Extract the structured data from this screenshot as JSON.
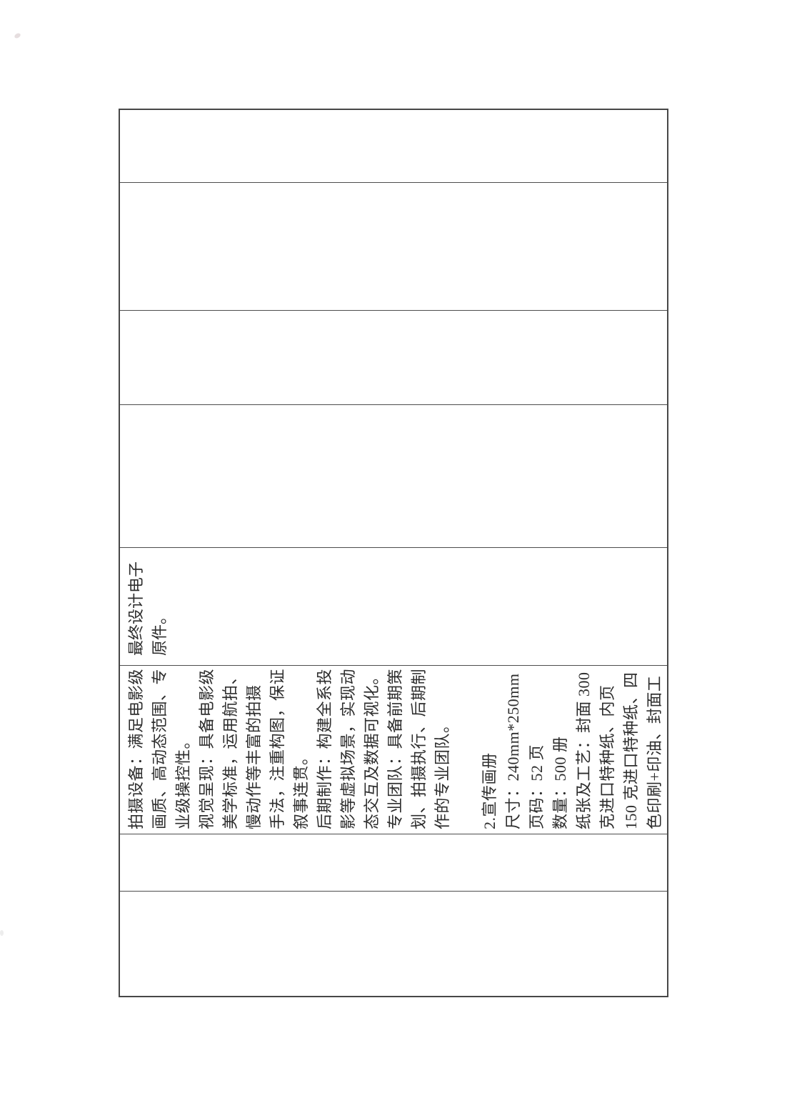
{
  "colors": {
    "page_background": "#ffffff",
    "table_border": "#474747",
    "text": "#2d2d2d"
  },
  "table": {
    "orientation": "rotated-90-ccw-scan",
    "cells": [
      {
        "id": "cell-1",
        "lines": []
      },
      {
        "id": "cell-2",
        "lines": []
      },
      {
        "id": "cell-3-photography-specs",
        "lines": [
          "拍摄设备：满足电影级",
          "画质、高动态范围、专",
          "业级操控性。",
          "视觉呈现：具备电影级",
          "美学标准，运用航拍、",
          "慢动作等丰富的拍摄",
          "手法，注重构图，保证",
          "叙事连贯。",
          "后期制作：构建全系投",
          "影等虚拟场景，实现动",
          "态交互及数据可视化。",
          "专业团队：具备前期策",
          "划、拍摄执行、后期制",
          "作的专业团队。",
          "",
          "2.宣传画册",
          "尺寸：240mm*250mm",
          "页码：52 页",
          "数量：500 册",
          "纸张及工艺：封面 300",
          "克进口特种纸、内页",
          "150 克进口特种纸、四",
          "色印刷+印油、封面工"
        ]
      },
      {
        "id": "cell-4-final-deliverable",
        "lines": [
          "最终设计电子",
          "原件。"
        ]
      },
      {
        "id": "cell-5",
        "lines": []
      },
      {
        "id": "cell-6",
        "lines": []
      },
      {
        "id": "cell-7",
        "lines": []
      },
      {
        "id": "cell-8",
        "lines": []
      }
    ]
  }
}
